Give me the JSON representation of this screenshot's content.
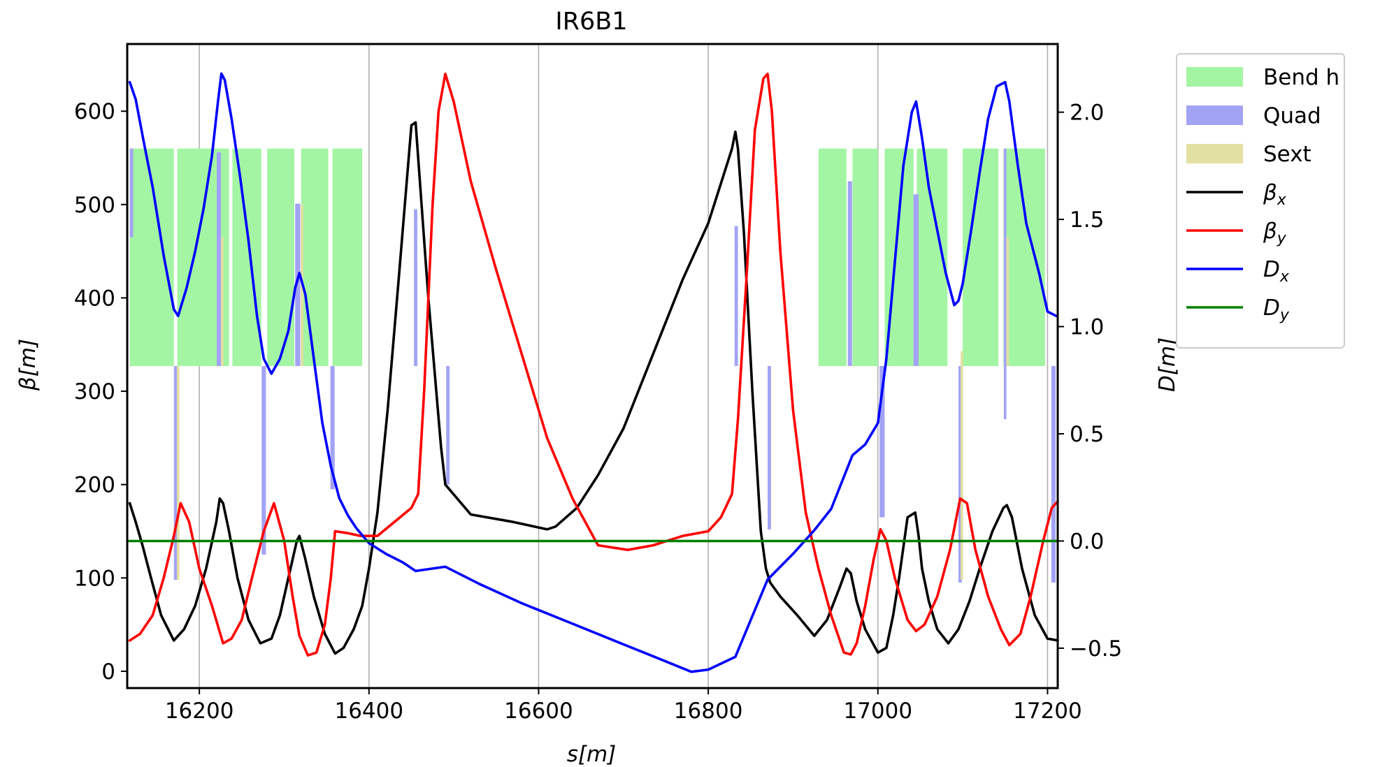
{
  "chart_data": {
    "type": "line",
    "title": "IR6B1",
    "xlabel": "s[m]",
    "ylabel_left": "β[m]",
    "ylabel_right": "D[m]",
    "xlim": [
      16115,
      17212
    ],
    "ylim_left": [
      -18,
      672
    ],
    "ylim_right": [
      -0.686,
      2.318
    ],
    "x_ticks": [
      16200,
      16400,
      16600,
      16800,
      17000,
      17200
    ],
    "y_ticks_left": [
      0,
      100,
      200,
      300,
      400,
      500,
      600
    ],
    "y_ticks_right": [
      -0.5,
      0.0,
      0.5,
      1.0,
      1.5,
      2.0
    ],
    "y_tick_labels_right": [
      "−0.5",
      "0.0",
      "0.5",
      "1.0",
      "1.5",
      "2.0"
    ],
    "grid": "vertical",
    "legend_position": "outside-right",
    "colors": {
      "beta_x": "#000000",
      "beta_y": "#ff0000",
      "D_x": "#0000ff",
      "D_y": "#008000",
      "bend": "#a3f5a3",
      "quad": "#a3a3f5",
      "sext": "#e3e0a3",
      "grid": "#b0b0b0"
    },
    "legend": [
      {
        "key": "bend",
        "label": "Bend h",
        "kind": "patch",
        "main": "Bend h",
        "sub": ""
      },
      {
        "key": "quad",
        "label": "Quad",
        "kind": "patch",
        "main": "Quad",
        "sub": ""
      },
      {
        "key": "sext",
        "label": "Sext",
        "kind": "patch",
        "main": "Sext",
        "sub": ""
      },
      {
        "key": "beta_x",
        "label": "βx",
        "kind": "line",
        "main": "β",
        "sub": "x"
      },
      {
        "key": "beta_y",
        "label": "βy",
        "kind": "line",
        "main": "β",
        "sub": "y"
      },
      {
        "key": "D_x",
        "label": "Dx",
        "kind": "line",
        "main": "D",
        "sub": "x"
      },
      {
        "key": "D_y",
        "label": "Dy",
        "kind": "line",
        "main": "D",
        "sub": "y"
      }
    ],
    "series": [
      {
        "key": "beta_x",
        "axis": "left",
        "x": [
          16118,
          16125,
          16133,
          16143,
          16155,
          16170,
          16182,
          16195,
          16208,
          16220,
          16224,
          16228,
          16235,
          16245,
          16258,
          16272,
          16285,
          16295,
          16305,
          16315,
          16318,
          16325,
          16335,
          16348,
          16360,
          16370,
          16382,
          16392,
          16400,
          16410,
          16422,
          16435,
          16445,
          16450,
          16455,
          16470,
          16485,
          16490,
          16520,
          16570,
          16610,
          16620,
          16645,
          16670,
          16700,
          16735,
          16770,
          16800,
          16828,
          16832,
          16835,
          16842,
          16852,
          16862,
          16868,
          16873,
          16885,
          16905,
          16925,
          16940,
          16955,
          16963,
          16968,
          16975,
          16985,
          17000,
          17010,
          17018,
          17025,
          17035,
          17044,
          17048,
          17052,
          17060,
          17070,
          17083,
          17095,
          17108,
          17120,
          17135,
          17148,
          17152,
          17158,
          17170,
          17185,
          17200,
          17212
        ],
        "y": [
          180,
          160,
          135,
          100,
          60,
          33,
          45,
          70,
          110,
          160,
          185,
          180,
          150,
          100,
          55,
          30,
          35,
          60,
          100,
          140,
          145,
          120,
          80,
          40,
          19,
          25,
          45,
          70,
          110,
          170,
          280,
          420,
          530,
          585,
          588,
          400,
          240,
          200,
          168,
          160,
          152,
          155,
          175,
          210,
          260,
          340,
          420,
          480,
          560,
          578,
          560,
          470,
          300,
          150,
          110,
          95,
          80,
          60,
          38,
          55,
          90,
          110,
          105,
          75,
          45,
          20,
          25,
          60,
          100,
          165,
          170,
          145,
          110,
          75,
          45,
          30,
          45,
          75,
          110,
          150,
          175,
          178,
          165,
          110,
          60,
          35,
          33
        ]
      },
      {
        "key": "beta_y",
        "axis": "left",
        "x": [
          16118,
          16130,
          16145,
          16158,
          16170,
          16178,
          16188,
          16200,
          16215,
          16228,
          16238,
          16250,
          16262,
          16276,
          16288,
          16300,
          16310,
          16318,
          16328,
          16338,
          16348,
          16355,
          16360,
          16375,
          16390,
          16410,
          16430,
          16450,
          16458,
          16465,
          16475,
          16482,
          16490,
          16500,
          16520,
          16550,
          16580,
          16610,
          16640,
          16670,
          16705,
          16735,
          16770,
          16800,
          16815,
          16828,
          16835,
          16845,
          16855,
          16865,
          16870,
          16875,
          16885,
          16900,
          16915,
          16930,
          16945,
          16960,
          16968,
          16975,
          16985,
          16995,
          17003,
          17010,
          17020,
          17035,
          17045,
          17055,
          17070,
          17085,
          17097,
          17105,
          17115,
          17130,
          17145,
          17155,
          17168,
          17180,
          17195,
          17205,
          17212
        ],
        "y": [
          33,
          40,
          60,
          100,
          145,
          180,
          160,
          110,
          70,
          30,
          35,
          55,
          100,
          150,
          180,
          140,
          80,
          38,
          17,
          20,
          50,
          100,
          150,
          148,
          145,
          145,
          160,
          175,
          190,
          300,
          500,
          600,
          640,
          610,
          525,
          430,
          340,
          250,
          185,
          135,
          130,
          135,
          145,
          150,
          165,
          190,
          270,
          420,
          580,
          635,
          640,
          600,
          450,
          280,
          170,
          110,
          60,
          20,
          18,
          30,
          70,
          120,
          152,
          140,
          100,
          55,
          43,
          50,
          80,
          130,
          185,
          180,
          130,
          80,
          45,
          28,
          40,
          80,
          140,
          175,
          182
        ]
      },
      {
        "key": "D_x",
        "axis": "right",
        "x": [
          16118,
          16125,
          16135,
          16145,
          16158,
          16170,
          16175,
          16185,
          16195,
          16205,
          16215,
          16222,
          16226,
          16230,
          16238,
          16248,
          16258,
          16268,
          16276,
          16285,
          16295,
          16305,
          16313,
          16318,
          16325,
          16335,
          16345,
          16355,
          16365,
          16375,
          16385,
          16400,
          16420,
          16440,
          16455,
          16490,
          16530,
          16580,
          16630,
          16680,
          16730,
          16780,
          16800,
          16832,
          16870,
          16900,
          16925,
          16945,
          16960,
          16970,
          16985,
          17000,
          17010,
          17020,
          17030,
          17040,
          17045,
          17052,
          17060,
          17070,
          17080,
          17090,
          17095,
          17100,
          17110,
          17120,
          17130,
          17140,
          17150,
          17155,
          17165,
          17175,
          17190,
          17200,
          17210
        ],
        "y": [
          2.14,
          2.06,
          1.85,
          1.65,
          1.33,
          1.08,
          1.05,
          1.18,
          1.35,
          1.55,
          1.8,
          2.05,
          2.18,
          2.15,
          1.97,
          1.7,
          1.4,
          1.05,
          0.85,
          0.78,
          0.85,
          0.98,
          1.18,
          1.25,
          1.15,
          0.85,
          0.55,
          0.35,
          0.2,
          0.12,
          0.06,
          -0.01,
          -0.06,
          -0.1,
          -0.14,
          -0.12,
          -0.2,
          -0.29,
          -0.37,
          -0.45,
          -0.53,
          -0.61,
          -0.6,
          -0.54,
          -0.18,
          -0.06,
          0.05,
          0.15,
          0.3,
          0.4,
          0.45,
          0.55,
          0.85,
          1.3,
          1.75,
          2.0,
          2.05,
          1.88,
          1.65,
          1.45,
          1.25,
          1.1,
          1.12,
          1.2,
          1.45,
          1.72,
          1.97,
          2.12,
          2.14,
          2.05,
          1.75,
          1.48,
          1.25,
          1.07,
          1.05
        ]
      },
      {
        "key": "D_y",
        "axis": "right",
        "x": [
          16115,
          17212
        ],
        "y": [
          0.0,
          0.0
        ]
      }
    ],
    "bends": [
      {
        "x0": 16118,
        "x1": 16170,
        "b0": 327,
        "b1": 560
      },
      {
        "x0": 16174,
        "x1": 16235,
        "b0": 327,
        "b1": 560
      },
      {
        "x0": 16239,
        "x1": 16273,
        "b0": 327,
        "b1": 560
      },
      {
        "x0": 16280,
        "x1": 16312,
        "b0": 327,
        "b1": 560
      },
      {
        "x0": 16320,
        "x1": 16352,
        "b0": 327,
        "b1": 560
      },
      {
        "x0": 16357,
        "x1": 16392,
        "b0": 327,
        "b1": 560
      },
      {
        "x0": 16930,
        "x1": 16963,
        "b0": 327,
        "b1": 560
      },
      {
        "x0": 16970,
        "x1": 17000,
        "b0": 327,
        "b1": 560
      },
      {
        "x0": 17008,
        "x1": 17042,
        "b0": 327,
        "b1": 560
      },
      {
        "x0": 17046,
        "x1": 17082,
        "b0": 327,
        "b1": 560
      },
      {
        "x0": 17100,
        "x1": 17142,
        "b0": 327,
        "b1": 560
      },
      {
        "x0": 17148,
        "x1": 17197,
        "b0": 327,
        "b1": 560
      }
    ],
    "quads": [
      {
        "x": 16120,
        "w": 4,
        "b0": 465,
        "b1": 560
      },
      {
        "x": 16172,
        "w": 4,
        "b0": 98,
        "b1": 327
      },
      {
        "x": 16223,
        "w": 5,
        "b0": 327,
        "b1": 556
      },
      {
        "x": 16276,
        "w": 5,
        "b0": 125,
        "b1": 327
      },
      {
        "x": 16316,
        "w": 6,
        "b0": 327,
        "b1": 501
      },
      {
        "x": 16357,
        "w": 5,
        "b0": 195,
        "b1": 327
      },
      {
        "x": 16455,
        "w": 4,
        "b0": 327,
        "b1": 495
      },
      {
        "x": 16493,
        "w": 4,
        "b0": 200,
        "b1": 327
      },
      {
        "x": 16833,
        "w": 4,
        "b0": 327,
        "b1": 477
      },
      {
        "x": 16872,
        "w": 4,
        "b0": 152,
        "b1": 327
      },
      {
        "x": 16967,
        "w": 5,
        "b0": 327,
        "b1": 525
      },
      {
        "x": 17005,
        "w": 6,
        "b0": 165,
        "b1": 327
      },
      {
        "x": 17045,
        "w": 6,
        "b0": 327,
        "b1": 511
      },
      {
        "x": 17097,
        "w": 4,
        "b0": 95,
        "b1": 327
      },
      {
        "x": 17150,
        "w": 3,
        "b0": 270,
        "b1": 560
      },
      {
        "x": 17207,
        "w": 5,
        "b0": 95,
        "b1": 327
      }
    ],
    "sexts": [
      {
        "x": 16175,
        "w": 3,
        "b0": 98,
        "b1": 327
      },
      {
        "x": 16227,
        "w": 3,
        "b0": 327,
        "b1": 465
      },
      {
        "x": 16321,
        "w": 3,
        "b0": 327,
        "b1": 500
      },
      {
        "x": 17099,
        "w": 3,
        "b0": 98,
        "b1": 343
      },
      {
        "x": 17153,
        "w": 3,
        "b0": 327,
        "b1": 465
      }
    ]
  }
}
